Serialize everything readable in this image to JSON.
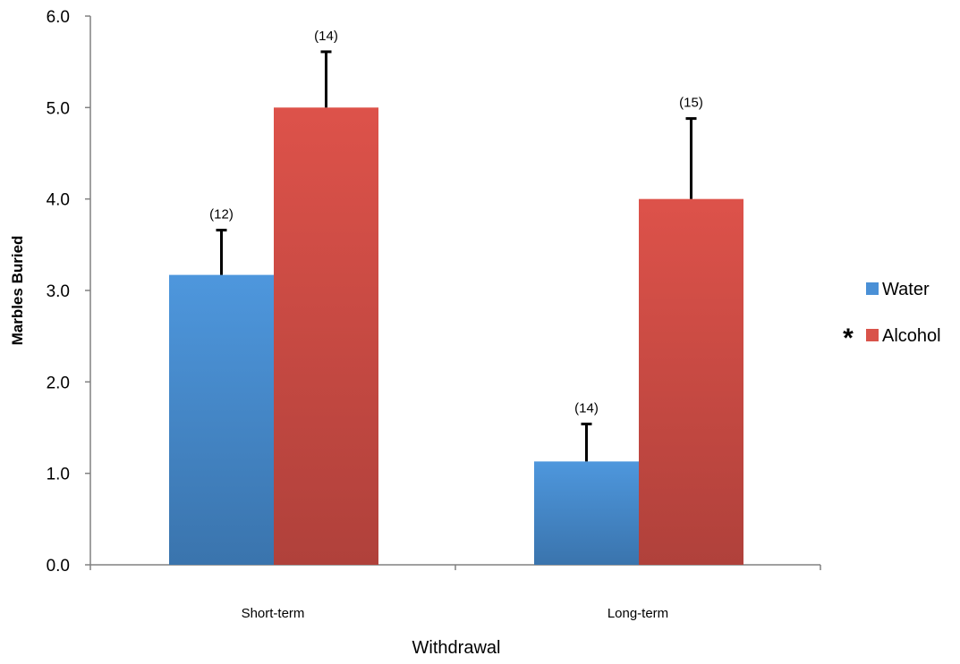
{
  "chart_data": {
    "type": "bar",
    "title": "",
    "xlabel": "Withdrawal",
    "ylabel": "Marbles Buried",
    "categories": [
      "Short-term",
      "Long-term"
    ],
    "ylim": [
      0,
      6
    ],
    "yticks": [
      "0.0",
      "1.0",
      "2.0",
      "3.0",
      "4.0",
      "5.0",
      "6.0"
    ],
    "grid": false,
    "legend_position": "right",
    "series": [
      {
        "name": "Water",
        "color": "#4A90D6",
        "values": [
          3.17,
          1.13
        ],
        "errors": [
          0.49,
          0.41
        ],
        "n_labels": [
          "(12)",
          "(14)"
        ]
      },
      {
        "name": "Alcohol",
        "color": "#D9534A",
        "values": [
          5.0,
          4.0
        ],
        "errors": [
          0.61,
          0.88
        ],
        "n_labels": [
          "(14)",
          "(15)"
        ]
      }
    ],
    "legend_marker": "*"
  }
}
